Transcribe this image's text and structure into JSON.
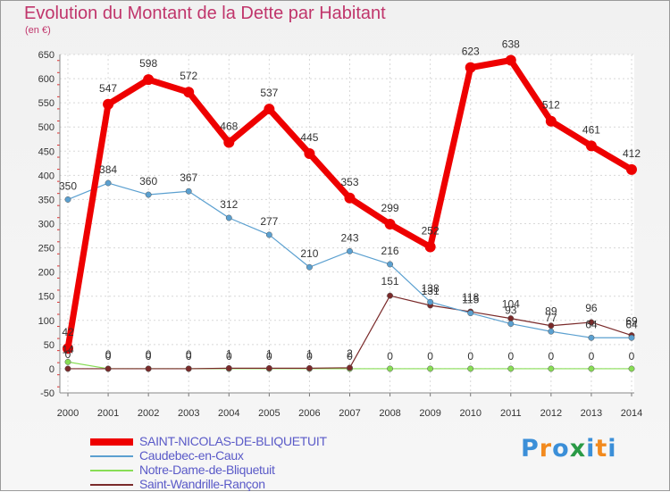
{
  "title": "Evolution du Montant de la Dette par Habitant",
  "unit": "(en €)",
  "brand": {
    "text": "Proxiti",
    "colors": [
      "#3b8fd8",
      "#f28a1e",
      "#3b8fd8",
      "#2a9a46",
      "#3b8fd8",
      "#f28a1e",
      "#3b8fd8"
    ]
  },
  "chart_data": {
    "type": "line",
    "x": [
      "2000",
      "2001",
      "2002",
      "2003",
      "2004",
      "2005",
      "2006",
      "2007",
      "2008",
      "2009",
      "2010",
      "2011",
      "2012",
      "2013",
      "2014"
    ],
    "ylim": [
      -50,
      650
    ],
    "yticks": [
      -50,
      0,
      50,
      100,
      150,
      200,
      250,
      300,
      350,
      400,
      450,
      500,
      550,
      600,
      650
    ],
    "grid": true,
    "legend_position": "bottom-left",
    "series": [
      {
        "name": "SAINT-NICOLAS-DE-BLIQUETUIT",
        "color": "#ee0000",
        "values": [
          42,
          547,
          598,
          572,
          468,
          537,
          445,
          353,
          299,
          252,
          623,
          638,
          512,
          461,
          412
        ]
      },
      {
        "name": "Caudebec-en-Caux",
        "color": "#5ba0d0",
        "values": [
          350,
          384,
          360,
          367,
          312,
          277,
          210,
          243,
          216,
          138,
          115,
          93,
          77,
          64,
          64
        ]
      },
      {
        "name": "Notre-Dame-de-Bliquetuit",
        "color": "#88dd55",
        "values": [
          14,
          0,
          0,
          0,
          0,
          0,
          0,
          0,
          0,
          0,
          0,
          0,
          0,
          0,
          0
        ]
      },
      {
        "name": "Saint-Wandrille-Rançon",
        "color": "#7a2a2a",
        "values": [
          0,
          0,
          0,
          0,
          1,
          1,
          1,
          2,
          151,
          131,
          118,
          104,
          89,
          96,
          69
        ]
      }
    ]
  }
}
